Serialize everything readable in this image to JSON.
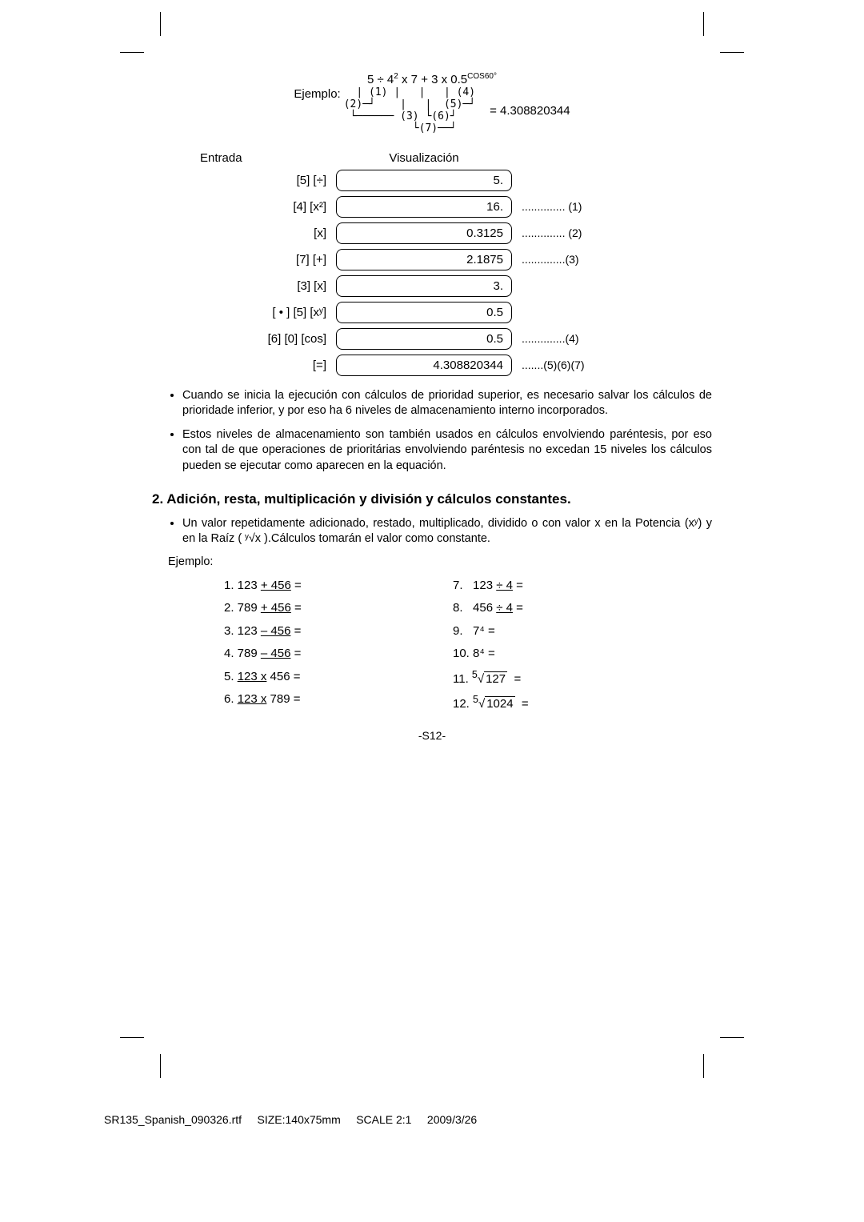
{
  "example": {
    "label": "Ejemplo:",
    "expression_line1": "5 ÷ 4² x 7 + 3 x 0.5",
    "exponent": "COS60°",
    "result": "= 4.308820344"
  },
  "table": {
    "head_input": "Entrada",
    "head_display": "Visualización",
    "rows": [
      {
        "input": "[5] [÷]",
        "display": "5.",
        "note": ""
      },
      {
        "input": "[4] [x²]",
        "display": "16.",
        "note": ".............. (1)"
      },
      {
        "input": "[x]",
        "display": "0.3125",
        "note": ".............. (2)"
      },
      {
        "input": "[7] [+]",
        "display": "2.1875",
        "note": "..............(3)"
      },
      {
        "input": "[3] [x]",
        "display": "3.",
        "note": ""
      },
      {
        "input": "[ • ] [5] [xʸ]",
        "display": "0.5",
        "note": ""
      },
      {
        "input": "[6] [0] [cos]",
        "display": "0.5",
        "note": "..............(4)"
      },
      {
        "input": "[=]",
        "display": "4.308820344",
        "note": ".......(5)(6)(7)"
      }
    ]
  },
  "bullets": [
    "Cuando se inicia la ejecución con cálculos de prioridad superior, es necesario salvar los cálculos de prioridade inferior, y por eso ha 6 niveles de almacenamiento interno incorporados.",
    "Estos niveles de almacenamiento son también usados en cálculos envolviendo paréntesis, por eso con tal de que operaciones de prioritárias envolviendo paréntesis no excedan 15 niveles los cálculos pueden se ejecutar como aparecen en la equación."
  ],
  "section2": {
    "title": "2. Adición, resta, multiplicación y división y cálculos constantes.",
    "bullet": "Un valor repetidamente adicionado, restado, multiplicado, dividido o con valor x en la Potencia (xʸ) y en la Raíz ( ʸ√x ).Cálculos tomarán el valor como constante.",
    "ejemplo_label": "Ejemplo:"
  },
  "examples": {
    "left": [
      "1. 123 <u>+ 456</u> =",
      "2. 789 <u>+ 456</u> =",
      "3. 123 <u>– 456</u> =",
      "4. 789 <u>– 456</u> =",
      "5. <u>123 x</u> 456 =",
      "6. <u>123 x</u> 789 ="
    ],
    "right": [
      "7.&nbsp;&nbsp;&nbsp;123 <u>÷ 4</u> =",
      "8.&nbsp;&nbsp;&nbsp;456 <u>÷ 4</u> =",
      "9.&nbsp;&nbsp;&nbsp;7⁴ =",
      "10.&nbsp;8⁴ =",
      "11.&nbsp;<sup>5</sup>√<span class='radicand'>127</span>&nbsp;&nbsp;=",
      "12.&nbsp;<sup>5</sup>√<span class='radicand'>1024</span>&nbsp;&nbsp;="
    ]
  },
  "page_number": "-S12-",
  "footer": {
    "file": "SR135_Spanish_090326.rtf",
    "size": "SIZE:140x75mm",
    "scale": "SCALE 2:1",
    "date": "2009/3/26"
  }
}
